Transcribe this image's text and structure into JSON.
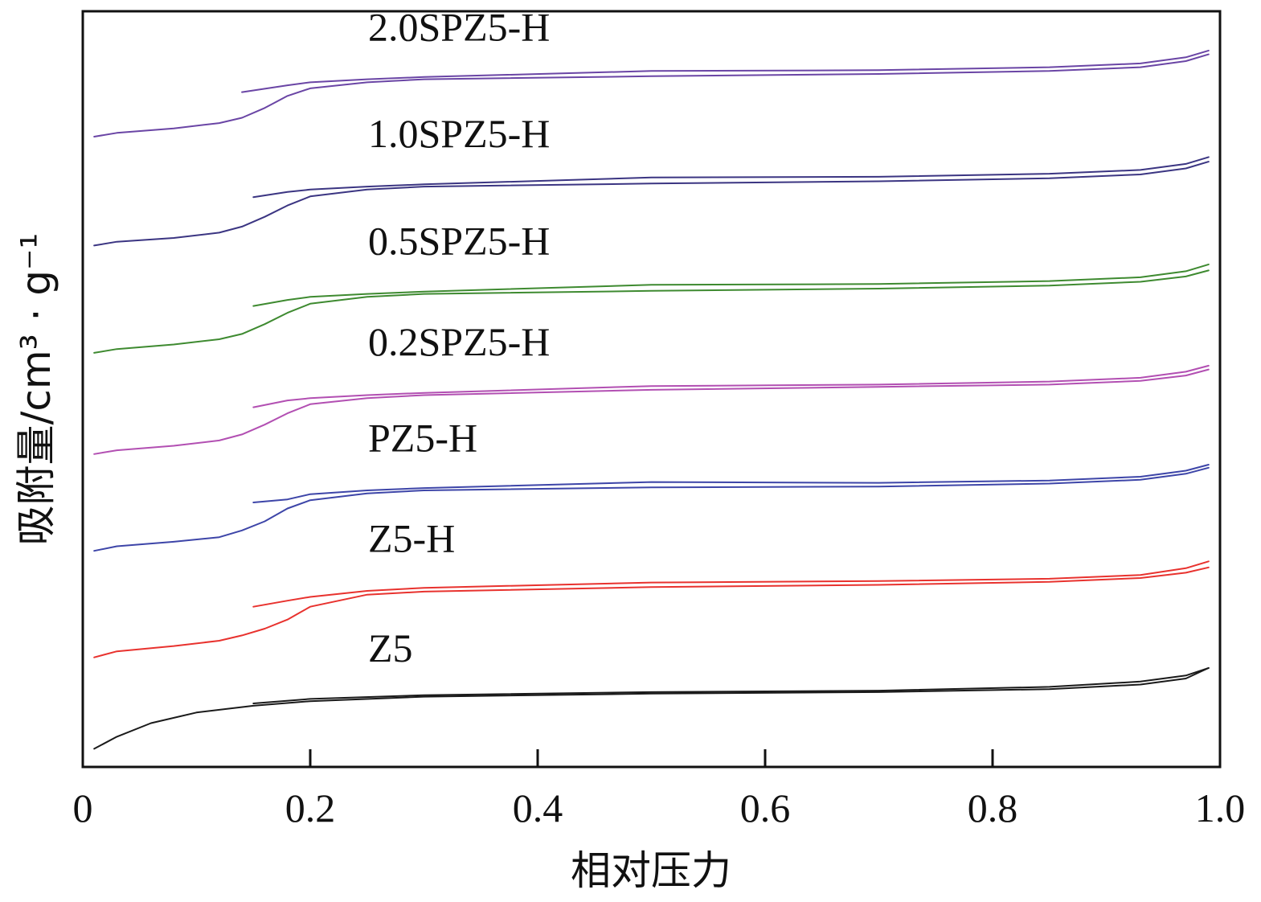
{
  "chart_data": {
    "type": "line",
    "xlabel": "相对压力",
    "ylabel": "吸附量/cm³ · g⁻¹",
    "xlim": [
      0,
      1.0
    ],
    "ylim": [
      0,
      1000
    ],
    "xticks": [
      {
        "value": 0,
        "label": "0"
      },
      {
        "value": 0.2,
        "label": "0.2"
      },
      {
        "value": 0.4,
        "label": "0.4"
      },
      {
        "value": 0.6,
        "label": "0.6"
      },
      {
        "value": 0.8,
        "label": "0.8"
      },
      {
        "value": 1.0,
        "label": "1.0"
      }
    ],
    "yticks_shown": false,
    "grid": false,
    "legend": "inline labels above curves",
    "series": [
      {
        "name": "Z5",
        "color": "#1a1a1a",
        "adsorption": [
          [
            0.01,
            24
          ],
          [
            0.03,
            40
          ],
          [
            0.06,
            58
          ],
          [
            0.1,
            72
          ],
          [
            0.15,
            81
          ],
          [
            0.2,
            87
          ],
          [
            0.3,
            93
          ],
          [
            0.5,
            97
          ],
          [
            0.7,
            99
          ],
          [
            0.85,
            103
          ],
          [
            0.93,
            109
          ],
          [
            0.97,
            117
          ],
          [
            0.99,
            131
          ]
        ],
        "desorption": [
          [
            0.99,
            131
          ],
          [
            0.97,
            121
          ],
          [
            0.93,
            113
          ],
          [
            0.85,
            106
          ],
          [
            0.7,
            101
          ],
          [
            0.5,
            99
          ],
          [
            0.3,
            95
          ],
          [
            0.2,
            90
          ],
          [
            0.15,
            84
          ]
        ]
      },
      {
        "name": "Z5-H",
        "color": "#e8322e",
        "adsorption": [
          [
            0.01,
            145
          ],
          [
            0.03,
            153
          ],
          [
            0.08,
            160
          ],
          [
            0.12,
            167
          ],
          [
            0.14,
            174
          ],
          [
            0.16,
            183
          ],
          [
            0.18,
            195
          ],
          [
            0.2,
            212
          ],
          [
            0.25,
            228
          ],
          [
            0.3,
            232
          ],
          [
            0.5,
            238
          ],
          [
            0.7,
            241
          ],
          [
            0.85,
            245
          ],
          [
            0.93,
            250
          ],
          [
            0.97,
            257
          ],
          [
            0.99,
            264
          ]
        ],
        "desorption": [
          [
            0.99,
            272
          ],
          [
            0.97,
            263
          ],
          [
            0.93,
            254
          ],
          [
            0.85,
            249
          ],
          [
            0.7,
            246
          ],
          [
            0.5,
            244
          ],
          [
            0.3,
            237
          ],
          [
            0.25,
            233
          ],
          [
            0.2,
            225
          ],
          [
            0.18,
            220
          ],
          [
            0.15,
            212
          ]
        ]
      },
      {
        "name": "PZ5-H",
        "color": "#3d45a8",
        "adsorption": [
          [
            0.01,
            286
          ],
          [
            0.03,
            292
          ],
          [
            0.08,
            298
          ],
          [
            0.12,
            304
          ],
          [
            0.14,
            313
          ],
          [
            0.16,
            325
          ],
          [
            0.18,
            342
          ],
          [
            0.2,
            353
          ],
          [
            0.25,
            362
          ],
          [
            0.3,
            366
          ],
          [
            0.5,
            370
          ],
          [
            0.7,
            371
          ],
          [
            0.85,
            375
          ],
          [
            0.93,
            380
          ],
          [
            0.97,
            388
          ],
          [
            0.99,
            396
          ]
        ],
        "desorption": [
          [
            0.99,
            400
          ],
          [
            0.97,
            392
          ],
          [
            0.93,
            384
          ],
          [
            0.85,
            379
          ],
          [
            0.7,
            376
          ],
          [
            0.5,
            377
          ],
          [
            0.3,
            369
          ],
          [
            0.25,
            366
          ],
          [
            0.2,
            361
          ],
          [
            0.18,
            354
          ],
          [
            0.15,
            350
          ]
        ]
      },
      {
        "name": "0.2SPZ5-H",
        "color": "#b24fb2",
        "adsorption": [
          [
            0.01,
            414
          ],
          [
            0.03,
            419
          ],
          [
            0.08,
            425
          ],
          [
            0.12,
            432
          ],
          [
            0.14,
            440
          ],
          [
            0.16,
            453
          ],
          [
            0.18,
            468
          ],
          [
            0.2,
            480
          ],
          [
            0.25,
            488
          ],
          [
            0.3,
            492
          ],
          [
            0.5,
            499
          ],
          [
            0.7,
            503
          ],
          [
            0.85,
            506
          ],
          [
            0.93,
            511
          ],
          [
            0.97,
            518
          ],
          [
            0.99,
            526
          ]
        ],
        "desorption": [
          [
            0.99,
            531
          ],
          [
            0.97,
            523
          ],
          [
            0.93,
            515
          ],
          [
            0.85,
            510
          ],
          [
            0.7,
            506
          ],
          [
            0.5,
            504
          ],
          [
            0.3,
            495
          ],
          [
            0.25,
            492
          ],
          [
            0.2,
            488
          ],
          [
            0.18,
            485
          ],
          [
            0.15,
            476
          ]
        ]
      },
      {
        "name": "0.5SPZ5-H",
        "color": "#3e8a30",
        "adsorption": [
          [
            0.01,
            548
          ],
          [
            0.03,
            553
          ],
          [
            0.08,
            559
          ],
          [
            0.12,
            566
          ],
          [
            0.14,
            573
          ],
          [
            0.16,
            586
          ],
          [
            0.18,
            601
          ],
          [
            0.2,
            613
          ],
          [
            0.25,
            622
          ],
          [
            0.3,
            626
          ],
          [
            0.5,
            630
          ],
          [
            0.7,
            633
          ],
          [
            0.85,
            637
          ],
          [
            0.93,
            642
          ],
          [
            0.97,
            649
          ],
          [
            0.99,
            657
          ]
        ],
        "desorption": [
          [
            0.99,
            665
          ],
          [
            0.97,
            656
          ],
          [
            0.93,
            648
          ],
          [
            0.85,
            643
          ],
          [
            0.7,
            639
          ],
          [
            0.5,
            638
          ],
          [
            0.3,
            629
          ],
          [
            0.25,
            626
          ],
          [
            0.2,
            622
          ],
          [
            0.18,
            618
          ],
          [
            0.15,
            610
          ]
        ]
      },
      {
        "name": "1.0SPZ5-H",
        "color": "#3b3582",
        "adsorption": [
          [
            0.01,
            690
          ],
          [
            0.03,
            695
          ],
          [
            0.08,
            700
          ],
          [
            0.12,
            707
          ],
          [
            0.14,
            715
          ],
          [
            0.16,
            728
          ],
          [
            0.18,
            743
          ],
          [
            0.2,
            755
          ],
          [
            0.25,
            764
          ],
          [
            0.3,
            768
          ],
          [
            0.5,
            772
          ],
          [
            0.7,
            775
          ],
          [
            0.85,
            779
          ],
          [
            0.93,
            784
          ],
          [
            0.97,
            792
          ],
          [
            0.99,
            801
          ]
        ],
        "desorption": [
          [
            0.99,
            807
          ],
          [
            0.97,
            798
          ],
          [
            0.93,
            790
          ],
          [
            0.85,
            785
          ],
          [
            0.7,
            781
          ],
          [
            0.5,
            780
          ],
          [
            0.3,
            771
          ],
          [
            0.25,
            768
          ],
          [
            0.2,
            764
          ],
          [
            0.18,
            761
          ],
          [
            0.15,
            754
          ]
        ]
      },
      {
        "name": "2.0SPZ5-H",
        "color": "#6a45a5",
        "adsorption": [
          [
            0.01,
            834
          ],
          [
            0.03,
            839
          ],
          [
            0.08,
            845
          ],
          [
            0.12,
            852
          ],
          [
            0.14,
            859
          ],
          [
            0.16,
            872
          ],
          [
            0.18,
            888
          ],
          [
            0.2,
            898
          ],
          [
            0.25,
            906
          ],
          [
            0.3,
            910
          ],
          [
            0.5,
            914
          ],
          [
            0.7,
            917
          ],
          [
            0.85,
            921
          ],
          [
            0.93,
            926
          ],
          [
            0.97,
            934
          ],
          [
            0.99,
            943
          ]
        ],
        "desorption": [
          [
            0.99,
            948
          ],
          [
            0.97,
            939
          ],
          [
            0.93,
            931
          ],
          [
            0.85,
            926
          ],
          [
            0.7,
            922
          ],
          [
            0.5,
            921
          ],
          [
            0.3,
            913
          ],
          [
            0.25,
            910
          ],
          [
            0.2,
            906
          ],
          [
            0.18,
            902
          ],
          [
            0.14,
            893
          ]
        ]
      }
    ]
  }
}
